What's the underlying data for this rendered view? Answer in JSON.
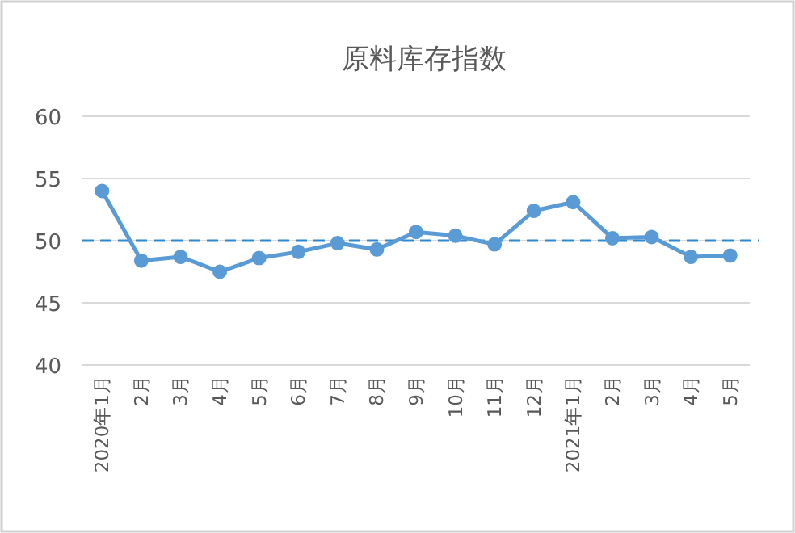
{
  "chart_data": {
    "type": "line",
    "title": "原料库存指数",
    "categories": [
      "2020年1月",
      "2月",
      "3月",
      "4月",
      "5月",
      "6月",
      "7月",
      "8月",
      "9月",
      "10月",
      "11月",
      "12月",
      "2021年1月",
      "2月",
      "3月",
      "4月",
      "5月"
    ],
    "series": [
      {
        "color": "#5b9bd5",
        "values": [
          54.0,
          48.4,
          48.7,
          47.5,
          48.6,
          49.1,
          49.8,
          49.3,
          50.7,
          50.4,
          49.7,
          52.4,
          53.1,
          50.2,
          50.3,
          48.7,
          48.8
        ]
      }
    ],
    "ylim": [
      40,
      60
    ],
    "yticks": [
      40,
      45,
      50,
      55,
      60
    ],
    "grid": "y",
    "marker": "circle",
    "line_style": "solid",
    "ref_lines": [
      {
        "axis": "y",
        "value": 50,
        "color": "#2e8ad0",
        "line_style": "dashed"
      }
    ]
  }
}
